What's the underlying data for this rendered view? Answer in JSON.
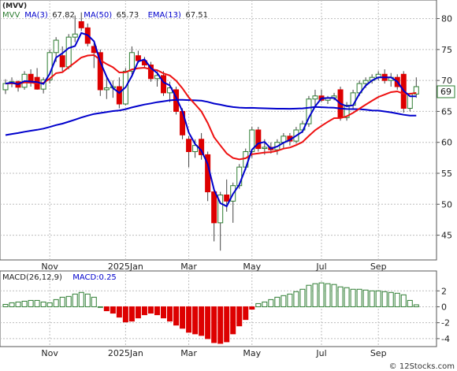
{
  "watermark": "© 12Stocks.com",
  "chart_data": [
    {
      "type": "candlestick",
      "title": "(MVV)",
      "legend": [
        {
          "label": "MVV",
          "color": "#2e7d32"
        },
        {
          "label": "MA(3)",
          "value": "67.82",
          "color": "#0000cc"
        },
        {
          "label": "MA(50)",
          "value": "65.73",
          "color": "#0000cc"
        },
        {
          "label": "EMA(13)",
          "value": "67.51",
          "color": "#0000cc"
        }
      ],
      "legend_placement": "top-left",
      "price_badge": "69",
      "x_tick_labels": [
        "Nov",
        "2025Jan",
        "Mar",
        "May",
        "Jul",
        "Sep"
      ],
      "y_ticks": [
        45,
        50,
        55,
        60,
        65,
        70,
        75,
        80
      ],
      "ylim": [
        41,
        83
      ],
      "grid": true,
      "colors": {
        "up": "#2e7d32",
        "down": "#dd0000",
        "ma_fast": "#0000cc",
        "ma_slow": "#0000cc",
        "ema": "#ee1111"
      },
      "candles": [
        {
          "o": 68.5,
          "h": 70.2,
          "l": 67.8,
          "c": 69.5
        },
        {
          "o": 69.5,
          "h": 70.5,
          "l": 68.9,
          "c": 69.8
        },
        {
          "o": 69.8,
          "h": 70.0,
          "l": 68.2,
          "c": 68.9
        },
        {
          "o": 68.9,
          "h": 71.5,
          "l": 68.5,
          "c": 71.0
        },
        {
          "o": 71.0,
          "h": 71.8,
          "l": 69.0,
          "c": 69.6
        },
        {
          "o": 70.5,
          "h": 72.0,
          "l": 68.5,
          "c": 68.6
        },
        {
          "o": 68.6,
          "h": 70.5,
          "l": 67.9,
          "c": 70.1
        },
        {
          "o": 70.1,
          "h": 75.0,
          "l": 69.5,
          "c": 74.5
        },
        {
          "o": 74.5,
          "h": 77.0,
          "l": 73.0,
          "c": 76.5
        },
        {
          "o": 74.0,
          "h": 75.5,
          "l": 71.5,
          "c": 72.2
        },
        {
          "o": 72.2,
          "h": 77.5,
          "l": 71.8,
          "c": 77.0
        },
        {
          "o": 77.0,
          "h": 80.5,
          "l": 76.2,
          "c": 77.5
        },
        {
          "o": 79.5,
          "h": 81.0,
          "l": 78.0,
          "c": 78.5
        },
        {
          "o": 78.5,
          "h": 79.2,
          "l": 75.5,
          "c": 76.0
        },
        {
          "o": 75.5,
          "h": 76.0,
          "l": 72.0,
          "c": 74.5
        },
        {
          "o": 74.5,
          "h": 75.0,
          "l": 67.5,
          "c": 68.5
        },
        {
          "o": 68.5,
          "h": 70.5,
          "l": 67.0,
          "c": 68.8
        },
        {
          "o": 68.8,
          "h": 70.0,
          "l": 67.2,
          "c": 69.0
        },
        {
          "o": 69.0,
          "h": 70.5,
          "l": 65.5,
          "c": 66.2
        },
        {
          "o": 66.2,
          "h": 72.0,
          "l": 66.0,
          "c": 71.5
        },
        {
          "o": 71.5,
          "h": 75.5,
          "l": 71.0,
          "c": 74.5
        },
        {
          "o": 74.0,
          "h": 74.8,
          "l": 72.8,
          "c": 73.2
        },
        {
          "o": 73.2,
          "h": 73.8,
          "l": 72.0,
          "c": 72.5
        },
        {
          "o": 72.5,
          "h": 73.0,
          "l": 69.8,
          "c": 70.3
        },
        {
          "o": 70.3,
          "h": 71.5,
          "l": 69.0,
          "c": 70.8
        },
        {
          "o": 70.8,
          "h": 71.5,
          "l": 67.5,
          "c": 68.0
        },
        {
          "o": 68.0,
          "h": 69.8,
          "l": 66.5,
          "c": 68.8
        },
        {
          "o": 68.5,
          "h": 69.0,
          "l": 64.5,
          "c": 65.0
        },
        {
          "o": 65.0,
          "h": 65.5,
          "l": 60.5,
          "c": 61.2
        },
        {
          "o": 60.5,
          "h": 61.0,
          "l": 56.0,
          "c": 58.5
        },
        {
          "o": 58.5,
          "h": 60.5,
          "l": 57.5,
          "c": 59.5
        },
        {
          "o": 60.5,
          "h": 61.5,
          "l": 57.2,
          "c": 58.0
        },
        {
          "o": 58.0,
          "h": 58.5,
          "l": 50.5,
          "c": 52.0
        },
        {
          "o": 52.0,
          "h": 52.5,
          "l": 44.0,
          "c": 47.0
        },
        {
          "o": 47.0,
          "h": 52.0,
          "l": 42.5,
          "c": 51.5
        },
        {
          "o": 51.5,
          "h": 54.0,
          "l": 48.8,
          "c": 50.5
        },
        {
          "o": 50.5,
          "h": 53.5,
          "l": 47.0,
          "c": 53.0
        },
        {
          "o": 53.0,
          "h": 56.5,
          "l": 52.5,
          "c": 56.0
        },
        {
          "o": 56.0,
          "h": 59.0,
          "l": 55.5,
          "c": 58.5
        },
        {
          "o": 58.5,
          "h": 62.5,
          "l": 57.5,
          "c": 62.0
        },
        {
          "o": 62.0,
          "h": 62.5,
          "l": 58.5,
          "c": 59.0
        },
        {
          "o": 59.0,
          "h": 60.5,
          "l": 58.0,
          "c": 59.2
        },
        {
          "o": 59.2,
          "h": 60.0,
          "l": 58.2,
          "c": 58.8
        },
        {
          "o": 58.8,
          "h": 60.5,
          "l": 58.0,
          "c": 60.0
        },
        {
          "o": 60.0,
          "h": 61.5,
          "l": 59.0,
          "c": 61.0
        },
        {
          "o": 61.0,
          "h": 61.5,
          "l": 59.5,
          "c": 60.2
        },
        {
          "o": 60.2,
          "h": 62.5,
          "l": 59.8,
          "c": 62.0
        },
        {
          "o": 62.0,
          "h": 63.5,
          "l": 61.5,
          "c": 63.0
        },
        {
          "o": 63.0,
          "h": 67.5,
          "l": 62.5,
          "c": 67.0
        },
        {
          "o": 67.0,
          "h": 68.5,
          "l": 66.0,
          "c": 67.5
        },
        {
          "o": 67.5,
          "h": 68.5,
          "l": 66.5,
          "c": 66.8
        },
        {
          "o": 66.8,
          "h": 67.5,
          "l": 66.2,
          "c": 67.2
        },
        {
          "o": 67.2,
          "h": 68.0,
          "l": 66.8,
          "c": 67.5
        },
        {
          "o": 68.5,
          "h": 69.0,
          "l": 63.5,
          "c": 64.0
        },
        {
          "o": 64.0,
          "h": 66.5,
          "l": 63.5,
          "c": 66.0
        },
        {
          "o": 66.0,
          "h": 68.5,
          "l": 65.5,
          "c": 68.0
        },
        {
          "o": 68.0,
          "h": 70.0,
          "l": 67.5,
          "c": 69.5
        },
        {
          "o": 69.5,
          "h": 70.5,
          "l": 68.8,
          "c": 70.0
        },
        {
          "o": 70.0,
          "h": 71.0,
          "l": 69.5,
          "c": 70.5
        },
        {
          "o": 70.5,
          "h": 71.5,
          "l": 70.0,
          "c": 71.0
        },
        {
          "o": 71.0,
          "h": 71.8,
          "l": 69.5,
          "c": 70.0
        },
        {
          "o": 70.0,
          "h": 71.2,
          "l": 69.0,
          "c": 70.5
        },
        {
          "o": 70.5,
          "h": 71.0,
          "l": 68.5,
          "c": 69.0
        },
        {
          "o": 71.0,
          "h": 71.5,
          "l": 64.8,
          "c": 65.5
        },
        {
          "o": 65.5,
          "h": 68.0,
          "l": 65.0,
          "c": 67.8
        },
        {
          "o": 67.8,
          "h": 70.5,
          "l": 67.2,
          "c": 69.0
        }
      ]
    },
    {
      "type": "bar",
      "title": "MACD(26,12,9)",
      "legend": [
        {
          "label": "MACD(26,12,9)",
          "color": "#222222"
        },
        {
          "label": "MACD:0.25",
          "color": "#0000cc"
        }
      ],
      "x_tick_labels": [
        "Nov",
        "2025Jan",
        "Mar",
        "May",
        "Jul",
        "Sep"
      ],
      "y_ticks": [
        -4,
        -2,
        0,
        2
      ],
      "ylim": [
        -5,
        4.5
      ],
      "colors": {
        "positive": "#2e7d32",
        "negative": "#dd0000"
      },
      "values": [
        0.3,
        0.5,
        0.6,
        0.7,
        0.8,
        0.8,
        0.6,
        0.5,
        0.9,
        1.2,
        1.3,
        1.6,
        1.8,
        1.6,
        1.2,
        0.0,
        -0.5,
        -0.8,
        -1.3,
        -1.9,
        -1.8,
        -1.4,
        -1.0,
        -0.8,
        -1.0,
        -1.4,
        -1.8,
        -2.3,
        -2.7,
        -3.2,
        -3.4,
        -3.6,
        -4.0,
        -4.5,
        -4.6,
        -4.4,
        -3.4,
        -2.4,
        -1.6,
        -0.3,
        0.4,
        0.6,
        0.9,
        1.2,
        1.4,
        1.6,
        1.9,
        2.2,
        2.7,
        2.9,
        3.0,
        2.9,
        2.8,
        2.5,
        2.4,
        2.2,
        2.2,
        2.1,
        2.0,
        2.0,
        1.9,
        1.8,
        1.7,
        1.5,
        0.8,
        0.25
      ]
    }
  ]
}
